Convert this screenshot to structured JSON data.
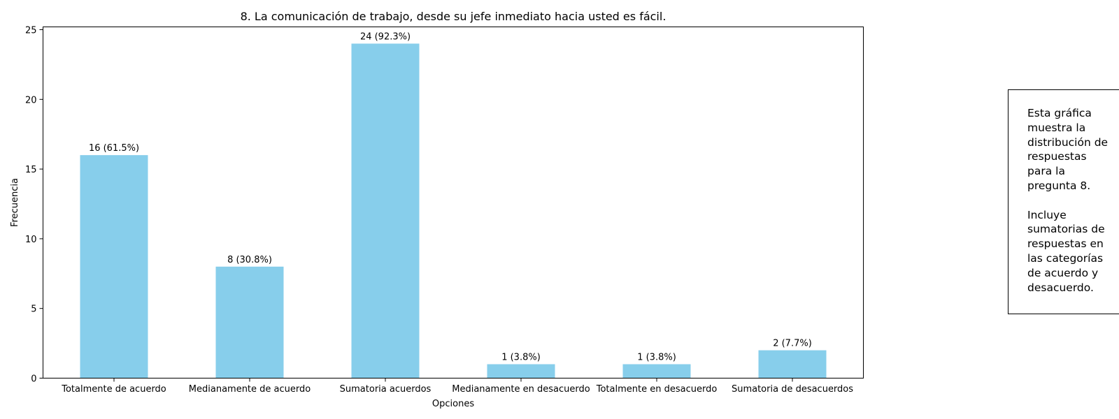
{
  "chart_data": {
    "type": "bar",
    "title": "8. La comunicación de trabajo, desde su jefe inmediato hacia usted es fácil.",
    "xlabel": "Opciones",
    "ylabel": "Frecuencia",
    "categories": [
      "Totalmente de acuerdo",
      "Medianamente de acuerdo",
      "Sumatoria acuerdos",
      "Medianamente en desacuerdo",
      "Totalmente en desacuerdo",
      "Sumatoria de desacuerdos"
    ],
    "values": [
      16,
      8,
      24,
      1,
      1,
      2
    ],
    "data_labels": [
      "16 (61.5%)",
      "8 (30.8%)",
      "24 (92.3%)",
      "1 (3.8%)",
      "1 (3.8%)",
      "2 (7.7%)"
    ],
    "yticks": [
      0,
      5,
      10,
      15,
      20,
      25
    ],
    "ylim": [
      0,
      25.2
    ],
    "bar_color": "#87CEEB",
    "grid": false,
    "legend": "none"
  },
  "annotation_box": {
    "text": "Esta gráfica\nmuestra la\ndistribución de\nrespuestas\npara la\npregunta 8.\n\nIncluye\nsumatorias de\nrespuestas en\nlas categorías\nde acuerdo y\ndesacuerdo."
  }
}
